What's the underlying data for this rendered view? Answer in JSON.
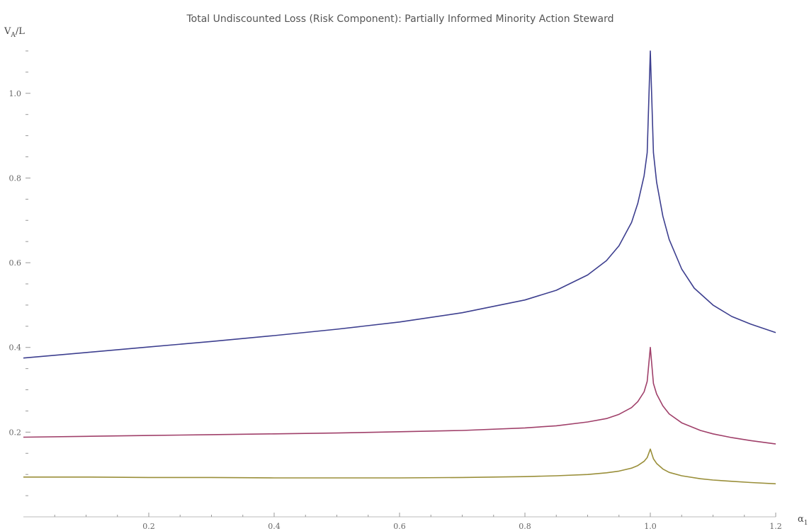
{
  "chart_data": {
    "type": "line",
    "title": "Total Undiscounted Loss (Risk Component): Partially Informed Minority Action Steward",
    "ylabel": {
      "main": "V",
      "sub": "A",
      "tail": "/L"
    },
    "xlabel": {
      "main": "α",
      "sub": "1"
    },
    "xlim": [
      0.0,
      1.2
    ],
    "ylim": [
      0.0,
      1.12
    ],
    "x_ticks": [
      0.2,
      0.4,
      0.6,
      0.8,
      1.0,
      1.2
    ],
    "x_tick_labels": [
      "0.2",
      "0.4",
      "0.6",
      "0.8",
      "1.0",
      "1.2"
    ],
    "y_ticks": [
      0.2,
      0.4,
      0.6,
      0.8,
      1.0
    ],
    "y_tick_labels": [
      "0.2",
      "0.4",
      "0.6",
      "0.8",
      "1.0"
    ],
    "grid": false,
    "series": [
      {
        "color": "#3d3f8f",
        "x": [
          0.0,
          0.1,
          0.2,
          0.3,
          0.4,
          0.5,
          0.6,
          0.7,
          0.8,
          0.85,
          0.9,
          0.93,
          0.95,
          0.97,
          0.98,
          0.99,
          0.995,
          1.0,
          1.005,
          1.01,
          1.02,
          1.03,
          1.05,
          1.07,
          1.1,
          1.13,
          1.16,
          1.2
        ],
        "y": [
          0.375,
          0.388,
          0.401,
          0.414,
          0.428,
          0.443,
          0.46,
          0.482,
          0.512,
          0.535,
          0.571,
          0.605,
          0.64,
          0.695,
          0.74,
          0.805,
          0.86,
          1.1,
          0.86,
          0.79,
          0.71,
          0.655,
          0.585,
          0.54,
          0.5,
          0.473,
          0.455,
          0.435
        ]
      },
      {
        "color": "#a0406a",
        "x": [
          0.0,
          0.1,
          0.2,
          0.3,
          0.4,
          0.5,
          0.6,
          0.7,
          0.8,
          0.85,
          0.9,
          0.93,
          0.95,
          0.97,
          0.98,
          0.99,
          0.995,
          1.0,
          1.005,
          1.01,
          1.02,
          1.03,
          1.05,
          1.08,
          1.1,
          1.13,
          1.16,
          1.2
        ],
        "y": [
          0.188,
          0.19,
          0.192,
          0.194,
          0.196,
          0.198,
          0.201,
          0.204,
          0.21,
          0.215,
          0.224,
          0.232,
          0.242,
          0.258,
          0.272,
          0.295,
          0.32,
          0.4,
          0.315,
          0.29,
          0.262,
          0.243,
          0.222,
          0.204,
          0.196,
          0.187,
          0.18,
          0.172
        ]
      },
      {
        "color": "#9a8f3a",
        "x": [
          0.0,
          0.1,
          0.2,
          0.3,
          0.4,
          0.5,
          0.6,
          0.7,
          0.8,
          0.85,
          0.9,
          0.93,
          0.95,
          0.97,
          0.98,
          0.99,
          0.995,
          1.0,
          1.005,
          1.01,
          1.02,
          1.03,
          1.05,
          1.08,
          1.1,
          1.13,
          1.16,
          1.2
        ],
        "y": [
          0.094,
          0.094,
          0.093,
          0.093,
          0.092,
          0.092,
          0.092,
          0.093,
          0.095,
          0.097,
          0.1,
          0.104,
          0.108,
          0.115,
          0.121,
          0.131,
          0.14,
          0.16,
          0.137,
          0.126,
          0.113,
          0.105,
          0.097,
          0.09,
          0.087,
          0.084,
          0.081,
          0.078
        ]
      }
    ]
  }
}
